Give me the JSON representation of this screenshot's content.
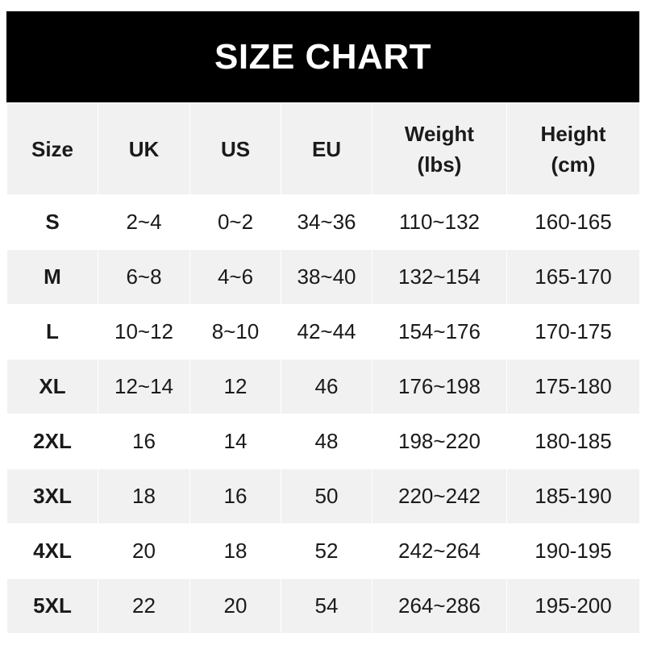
{
  "title": "SIZE CHART",
  "columns": [
    "Size",
    "UK",
    "US",
    "EU",
    "Weight\n(lbs)",
    "Height\n(cm)"
  ],
  "rows": [
    [
      "S",
      "2~4",
      "0~2",
      "34~36",
      "110~132",
      "160-165"
    ],
    [
      "M",
      "6~8",
      "4~6",
      "38~40",
      "132~154",
      "165-170"
    ],
    [
      "L",
      "10~12",
      "8~10",
      "42~44",
      "154~176",
      "170-175"
    ],
    [
      "XL",
      "12~14",
      "12",
      "46",
      "176~198",
      "175-180"
    ],
    [
      "2XL",
      "16",
      "14",
      "48",
      "198~220",
      "180-185"
    ],
    [
      "3XL",
      "18",
      "16",
      "50",
      "220~242",
      "185-190"
    ],
    [
      "4XL",
      "20",
      "18",
      "52",
      "242~264",
      "190-195"
    ],
    [
      "5XL",
      "22",
      "20",
      "54",
      "264~286",
      "195-200"
    ]
  ],
  "colors": {
    "title_bg": "#000000",
    "title_text": "#ffffff",
    "stripe": "#f1f1f1"
  }
}
